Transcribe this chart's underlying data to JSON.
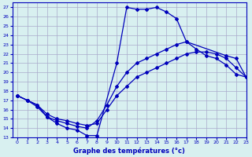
{
  "xlabel": "Graphe des températures (°c)",
  "background_color": "#d8f0f0",
  "grid_color": "#aaaacc",
  "line_color": "#0000bb",
  "xlim": [
    -0.5,
    23
  ],
  "ylim": [
    13,
    27.5
  ],
  "xticks": [
    0,
    1,
    2,
    3,
    4,
    5,
    6,
    7,
    8,
    9,
    10,
    11,
    12,
    13,
    14,
    15,
    16,
    17,
    18,
    19,
    20,
    21,
    22,
    23
  ],
  "yticks": [
    13,
    14,
    15,
    16,
    17,
    18,
    19,
    20,
    21,
    22,
    23,
    24,
    25,
    26,
    27
  ],
  "line1_x": [
    0,
    1,
    2,
    3,
    4,
    5,
    6,
    7,
    8,
    10,
    11,
    12,
    13,
    14,
    15,
    16,
    17,
    21,
    22,
    23
  ],
  "line1_y": [
    17.5,
    17.0,
    16.5,
    15.2,
    14.5,
    14.0,
    13.8,
    13.2,
    13.2,
    21.0,
    27.0,
    26.8,
    26.8,
    27.0,
    26.5,
    25.8,
    23.3,
    21.8,
    21.5,
    19.5
  ],
  "line2_x": [
    0,
    1,
    2,
    3,
    4,
    5,
    6,
    7,
    8,
    9,
    10,
    11,
    12,
    13,
    14,
    15,
    16,
    17,
    18,
    19,
    20,
    21,
    22,
    23
  ],
  "line2_y": [
    17.5,
    17.0,
    16.5,
    15.5,
    15.0,
    14.8,
    14.5,
    14.3,
    14.5,
    16.0,
    17.5,
    18.5,
    19.5,
    20.0,
    20.5,
    21.0,
    21.5,
    22.0,
    22.2,
    22.2,
    22.0,
    21.5,
    20.5,
    19.5
  ],
  "line3_x": [
    0,
    1,
    2,
    3,
    4,
    5,
    6,
    7,
    8,
    9,
    10,
    11,
    12,
    13,
    14,
    15,
    16,
    17,
    18,
    19,
    20,
    21,
    22,
    23
  ],
  "line3_y": [
    17.5,
    17.0,
    16.3,
    15.2,
    14.8,
    14.5,
    14.2,
    14.0,
    14.8,
    16.5,
    18.5,
    20.0,
    21.0,
    21.5,
    22.0,
    22.5,
    23.0,
    23.3,
    22.5,
    21.8,
    21.5,
    20.8,
    19.8,
    19.5
  ]
}
